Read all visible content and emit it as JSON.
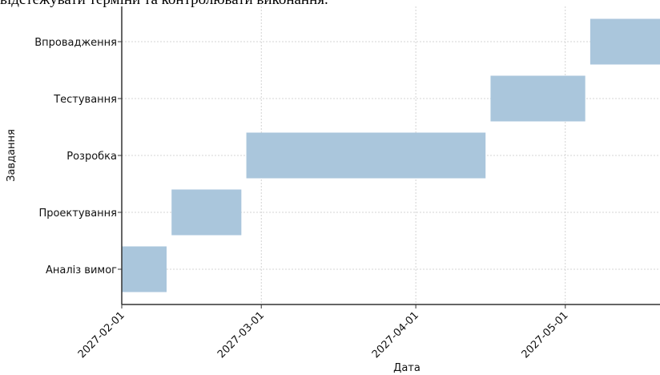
{
  "header_text": "відстежувати терміни та контролювати виконання.",
  "chart_data": {
    "type": "gantt",
    "xlabel": "Дата",
    "ylabel": "Завдання",
    "x_ticks": [
      "2027-02-01",
      "2027-03-01",
      "2027-04-01",
      "2027-05-01"
    ],
    "xlim": [
      "2027-02-01",
      "2027-05-20"
    ],
    "grid": true,
    "bar_color": "#aac6dc",
    "tasks": [
      {
        "name": "Аналіз вимог",
        "start": "2027-02-01",
        "end": "2027-02-10"
      },
      {
        "name": "Проектування",
        "start": "2027-02-11",
        "end": "2027-02-25"
      },
      {
        "name": "Розробка",
        "start": "2027-02-26",
        "end": "2027-04-15"
      },
      {
        "name": "Тестування",
        "start": "2027-04-16",
        "end": "2027-05-05"
      },
      {
        "name": "Впровадження",
        "start": "2027-05-06",
        "end": "2027-05-20"
      }
    ]
  }
}
